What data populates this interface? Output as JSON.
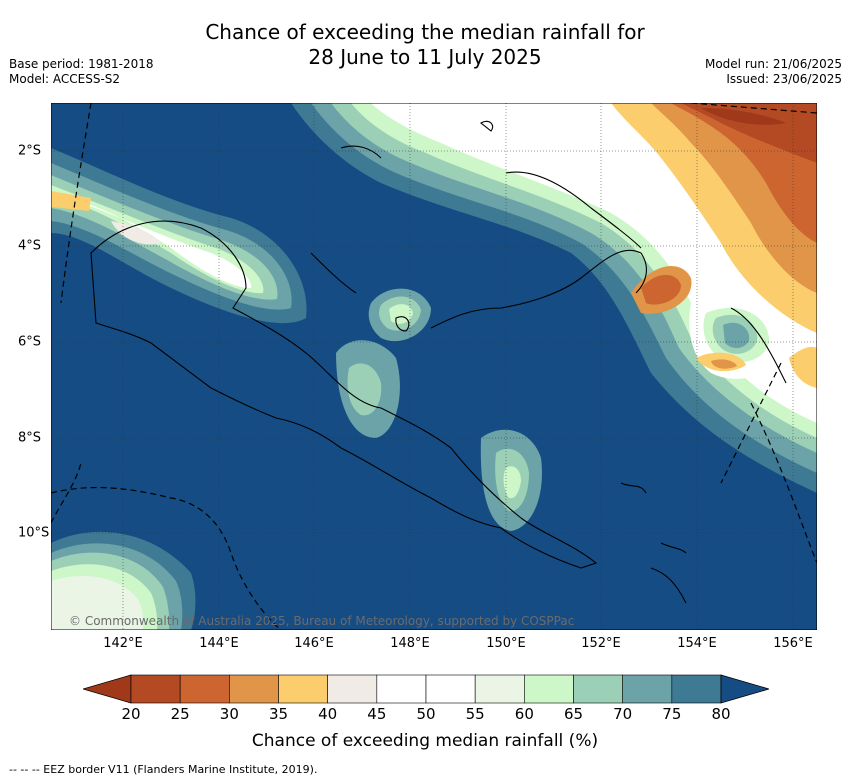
{
  "title_line1": "Chance of exceeding the median rainfall for",
  "title_line2": "28 June to 11 July 2025",
  "base_period": "Base period: 1981-2018",
  "model": "Model: ACCESS-S2",
  "model_run": "Model run: 21/06/2025",
  "issued": "Issued: 23/06/2025",
  "copyright": "© Commonwealth of Australia 2025, Bureau of Meteorology, supported by COSPPac",
  "lon_labels": [
    "142°E",
    "144°E",
    "146°E",
    "148°E",
    "150°E",
    "152°E",
    "154°E",
    "156°E"
  ],
  "lat_labels": [
    "2°S",
    "4°S",
    "6°S",
    "8°S",
    "10°S"
  ],
  "colorbar": {
    "labels": [
      "20",
      "25",
      "30",
      "35",
      "40",
      "45",
      "50",
      "55",
      "60",
      "65",
      "70",
      "75",
      "80"
    ],
    "colors": [
      "#a0391a",
      "#b34a24",
      "#cc6530",
      "#e09548",
      "#fbcd6c",
      "#f0ebe5",
      "#ffffff",
      "#ffffff",
      "#eaf5e6",
      "#cdf7c9",
      "#9bd0b6",
      "#6ba3a8",
      "#3f7a94",
      "#154c84"
    ],
    "title": "Chance of exceeding median rainfall (%)"
  },
  "legend_line": "--  --  -- EEZ border V11 (Flanders Marine Institute, 2019)."
}
